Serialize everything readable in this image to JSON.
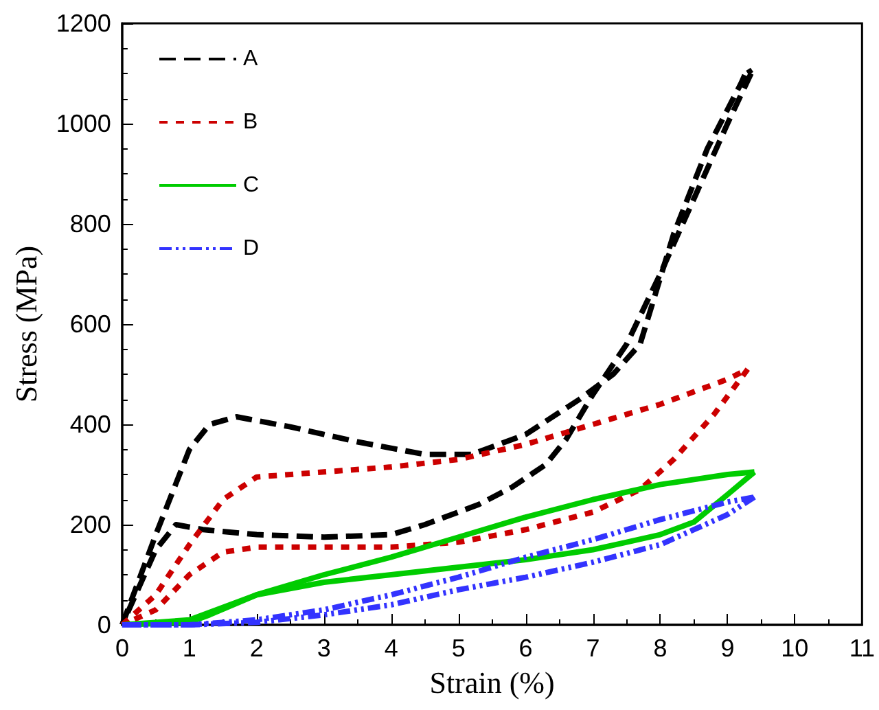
{
  "chart_data": {
    "type": "line",
    "xlabel": "Strain (%)",
    "ylabel": "Stress (MPa)",
    "xlim": [
      0,
      11
    ],
    "xticks": [
      0,
      1,
      2,
      3,
      4,
      5,
      6,
      7,
      8,
      9,
      10,
      11
    ],
    "ylim": [
      0,
      1200
    ],
    "yticks": [
      0,
      200,
      400,
      600,
      800,
      1000,
      1200
    ],
    "grid": false,
    "legend": "top left",
    "marker": "none",
    "series": [
      {
        "name": "A",
        "color": "#000000",
        "line_style": "dashed",
        "x": [
          0,
          0.5,
          1,
          1.3,
          1.7,
          2.5,
          3.5,
          4.5,
          5.2,
          6,
          6.8,
          7.3,
          7.7,
          8.2,
          8.7,
          9.2,
          9.3,
          9.35,
          9,
          8.5,
          8,
          7.5,
          7,
          6.6,
          6.3,
          5.8,
          5.3,
          4.5,
          4,
          3,
          2,
          1.2,
          0.8,
          0.5,
          0.2,
          0
        ],
        "values": [
          0,
          180,
          350,
          400,
          415,
          395,
          365,
          340,
          340,
          380,
          450,
          500,
          560,
          780,
          950,
          1080,
          1110,
          1100,
          1000,
          850,
          700,
          560,
          460,
          370,
          320,
          275,
          240,
          200,
          180,
          175,
          180,
          190,
          200,
          150,
          60,
          0
        ]
      },
      {
        "name": "B",
        "color": "#cc0000",
        "line_style": "dotted",
        "x": [
          0,
          0.5,
          1,
          1.5,
          2,
          3,
          4,
          5,
          6,
          7,
          8,
          9,
          9.3,
          8.8,
          8.2,
          7.7,
          7,
          6,
          5,
          4,
          3,
          2,
          1.5,
          1,
          0.5,
          0
        ],
        "values": [
          0,
          60,
          160,
          250,
          295,
          305,
          315,
          330,
          360,
          400,
          440,
          490,
          510,
          420,
          330,
          270,
          225,
          190,
          165,
          155,
          155,
          155,
          145,
          100,
          30,
          0
        ]
      },
      {
        "name": "C",
        "color": "#00cc00",
        "line_style": "solid",
        "x": [
          0,
          1,
          2,
          3,
          4,
          5,
          6,
          7,
          8,
          9,
          9.4,
          9,
          8.5,
          8,
          7.5,
          7,
          6,
          5,
          4,
          3,
          2,
          1.3,
          1,
          0
        ],
        "values": [
          0,
          10,
          60,
          100,
          135,
          175,
          215,
          250,
          280,
          300,
          305,
          260,
          205,
          180,
          165,
          150,
          130,
          115,
          100,
          85,
          60,
          20,
          5,
          0
        ]
      },
      {
        "name": "D",
        "color": "#3333ff",
        "line_style": "dashdot",
        "x": [
          0,
          1,
          2,
          3,
          4,
          5,
          6,
          7,
          8,
          9,
          9.4,
          9,
          8,
          7,
          6,
          5,
          4,
          3,
          2,
          1,
          0
        ],
        "values": [
          0,
          0,
          10,
          30,
          60,
          95,
          135,
          170,
          210,
          245,
          255,
          220,
          160,
          125,
          95,
          70,
          40,
          20,
          5,
          0,
          0
        ]
      }
    ]
  }
}
